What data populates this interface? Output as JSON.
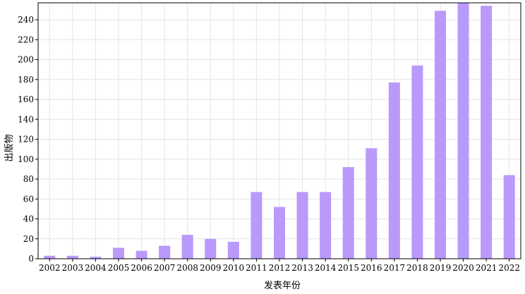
{
  "chart_data": {
    "type": "bar",
    "xlabel": "发表年份",
    "ylabel": "出版物",
    "categories": [
      "2002",
      "2003",
      "2004",
      "2005",
      "2006",
      "2007",
      "2008",
      "2009",
      "2010",
      "2011",
      "2012",
      "2013",
      "2014",
      "2015",
      "2016",
      "2017",
      "2018",
      "2019",
      "2020",
      "2021",
      "2022"
    ],
    "values": [
      3,
      3,
      2,
      11,
      8,
      13,
      24,
      20,
      17,
      67,
      52,
      67,
      67,
      92,
      111,
      177,
      194,
      249,
      257,
      254,
      84
    ],
    "ylim": [
      0,
      257
    ],
    "yticks": [
      0,
      20,
      40,
      60,
      80,
      100,
      120,
      140,
      160,
      180,
      200,
      220,
      240
    ],
    "grid": true,
    "bar_color": "#b999fa",
    "grid_color": "#e3e3e3"
  }
}
